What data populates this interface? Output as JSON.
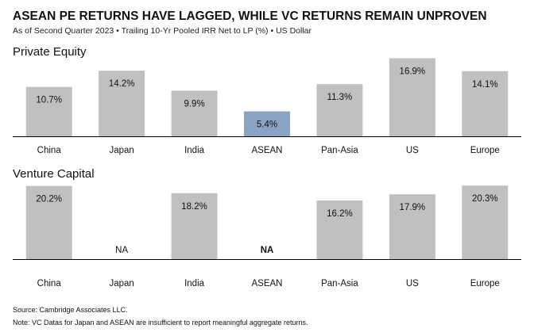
{
  "header": {
    "title": "ASEAN PE RETURNS HAVE LAGGED, WHILE VC RETURNS REMAIN UNPROVEN",
    "subtitle": "As of Second Quarter 2023 • Trailing 10-Yr Pooled IRR Net to LP (%) • US Dollar"
  },
  "colors": {
    "bar": "#c0c0c0",
    "highlight": "#8aa5c4",
    "na_highlight_text": "#6f8fb5",
    "axis": "#000000"
  },
  "chart_data": [
    {
      "type": "bar",
      "title": "Private Equity",
      "categories": [
        "China",
        "Japan",
        "India",
        "ASEAN",
        "Pan-Asia",
        "US",
        "Europe"
      ],
      "values": [
        10.7,
        14.2,
        9.9,
        5.4,
        11.3,
        16.9,
        14.1
      ],
      "labels": [
        "10.7%",
        "14.2%",
        "9.9%",
        "5.4%",
        "11.3%",
        "16.9%",
        "14.1%"
      ],
      "highlight": "ASEAN",
      "ylim": [
        0,
        17.5
      ],
      "xlabel": "",
      "ylabel": "",
      "grid": false
    },
    {
      "type": "bar",
      "title": "Venture Capital",
      "categories": [
        "China",
        "Japan",
        "India",
        "ASEAN",
        "Pan-Asia",
        "US",
        "Europe"
      ],
      "values": [
        20.2,
        null,
        18.2,
        null,
        16.2,
        17.9,
        20.3
      ],
      "labels": [
        "20.2%",
        "NA",
        "18.2%",
        "NA",
        "16.2%",
        "17.9%",
        "20.3%"
      ],
      "highlight": "ASEAN",
      "ylim": [
        0,
        21
      ],
      "xlabel": "",
      "ylabel": "",
      "grid": false
    }
  ],
  "footer": {
    "source": "Source: Cambridge Associates LLC.",
    "note": "Note: VC Datas for Japan and ASEAN are insufficient to report meaningful aggregate returns."
  }
}
